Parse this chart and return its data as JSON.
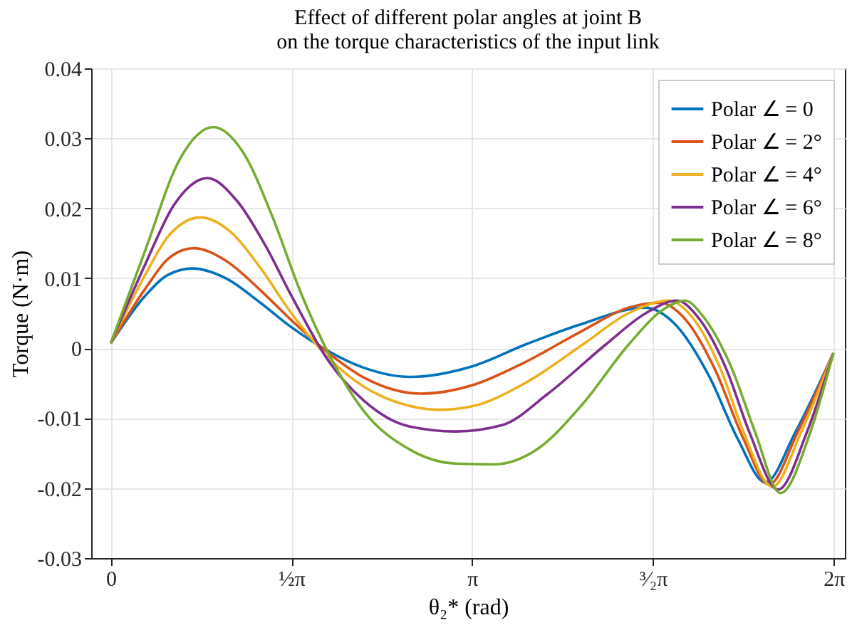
{
  "chart_data": {
    "type": "line",
    "title": "Effect of different polar angles at joint B\non the torque characteristics of the input link",
    "xlabel": "θ₂* (rad)",
    "ylabel": "Torque (N·m)",
    "xlim": [
      -0.17,
      6.38
    ],
    "xticks": [
      0,
      {
        "value": 1.5708,
        "label": "½π"
      },
      {
        "value": 3.1416,
        "label": "π"
      },
      {
        "value": 4.7124,
        "label": "³⁄₂π"
      },
      {
        "value": 6.2832,
        "label": "2π"
      }
    ],
    "ylim": [
      -0.03,
      0.04
    ],
    "yticks": [
      -0.03,
      -0.02,
      -0.01,
      0,
      0.01,
      0.02,
      0.03,
      0.04
    ],
    "grid": true,
    "legend": "top right",
    "line_style": "solid",
    "marker": "none",
    "series": [
      {
        "name": "Polar ∠ = 0",
        "color": "#0072bd",
        "x": [
          0,
          0.3,
          0.5,
          0.71,
          1.0,
          1.3,
          1.57,
          1.9,
          2.2,
          2.6,
          3.14,
          3.6,
          4.1,
          4.64,
          4.9,
          5.2,
          5.45,
          5.69,
          5.95,
          6.28
        ],
        "values": [
          0.0007,
          0.0075,
          0.0105,
          0.0114,
          0.01,
          0.0065,
          0.003,
          -0.0005,
          -0.0028,
          -0.0041,
          -0.0026,
          0.0005,
          0.0035,
          0.0058,
          0.0035,
          -0.004,
          -0.013,
          -0.0192,
          -0.012,
          -0.0007
        ]
      },
      {
        "name": "Polar ∠ = 2°",
        "color": "#d95319",
        "x": [
          0,
          0.3,
          0.5,
          0.72,
          1.0,
          1.3,
          1.57,
          1.9,
          2.2,
          2.7,
          3.14,
          3.6,
          4.1,
          4.5,
          4.77,
          5.0,
          5.25,
          5.5,
          5.72,
          5.97,
          6.28
        ],
        "values": [
          0.0007,
          0.0085,
          0.0128,
          0.0143,
          0.0125,
          0.0083,
          0.004,
          -0.0008,
          -0.0042,
          -0.0065,
          -0.0053,
          -0.002,
          0.0025,
          0.0058,
          0.0065,
          0.004,
          -0.003,
          -0.013,
          -0.0195,
          -0.012,
          -0.0007
        ]
      },
      {
        "name": "Polar ∠ = 4°",
        "color": "#edb120",
        "x": [
          0,
          0.3,
          0.5,
          0.78,
          1.05,
          1.3,
          1.57,
          1.9,
          2.2,
          2.5,
          2.85,
          3.14,
          3.6,
          4.1,
          4.5,
          4.85,
          5.05,
          5.3,
          5.5,
          5.75,
          6.0,
          6.28
        ],
        "values": [
          0.0007,
          0.0105,
          0.016,
          0.0187,
          0.0165,
          0.0115,
          0.005,
          -0.0015,
          -0.0055,
          -0.0078,
          -0.0088,
          -0.0083,
          -0.005,
          0.0005,
          0.005,
          0.0068,
          0.0045,
          -0.003,
          -0.012,
          -0.0198,
          -0.012,
          -0.0007
        ]
      },
      {
        "name": "Polar ∠ = 6°",
        "color": "#7e2f8e",
        "x": [
          0,
          0.3,
          0.55,
          0.84,
          1.1,
          1.35,
          1.57,
          1.9,
          2.2,
          2.6,
          3.0,
          3.4,
          3.8,
          4.3,
          4.65,
          4.92,
          5.1,
          5.35,
          5.55,
          5.8,
          6.05,
          6.28
        ],
        "values": [
          0.0007,
          0.012,
          0.0205,
          0.0243,
          0.021,
          0.0145,
          0.0075,
          -0.002,
          -0.0075,
          -0.0112,
          -0.0119,
          -0.011,
          -0.0065,
          0.0005,
          0.005,
          0.0068,
          0.0045,
          -0.003,
          -0.012,
          -0.0202,
          -0.012,
          -0.0007
        ]
      },
      {
        "name": "Polar ∠ = 8°",
        "color": "#77ac30",
        "x": [
          0,
          0.3,
          0.6,
          0.89,
          1.15,
          1.4,
          1.65,
          1.9,
          2.2,
          2.6,
          3.0,
          3.33,
          3.7,
          4.1,
          4.5,
          4.8,
          4.99,
          5.15,
          5.4,
          5.6,
          5.82,
          6.08,
          6.28
        ],
        "values": [
          0.0007,
          0.014,
          0.027,
          0.0316,
          0.028,
          0.019,
          0.008,
          -0.001,
          -0.009,
          -0.0145,
          -0.0165,
          -0.0166,
          -0.0145,
          -0.008,
          0.0005,
          0.0055,
          0.0068,
          0.0045,
          -0.003,
          -0.012,
          -0.0207,
          -0.012,
          -0.0007
        ]
      }
    ]
  }
}
